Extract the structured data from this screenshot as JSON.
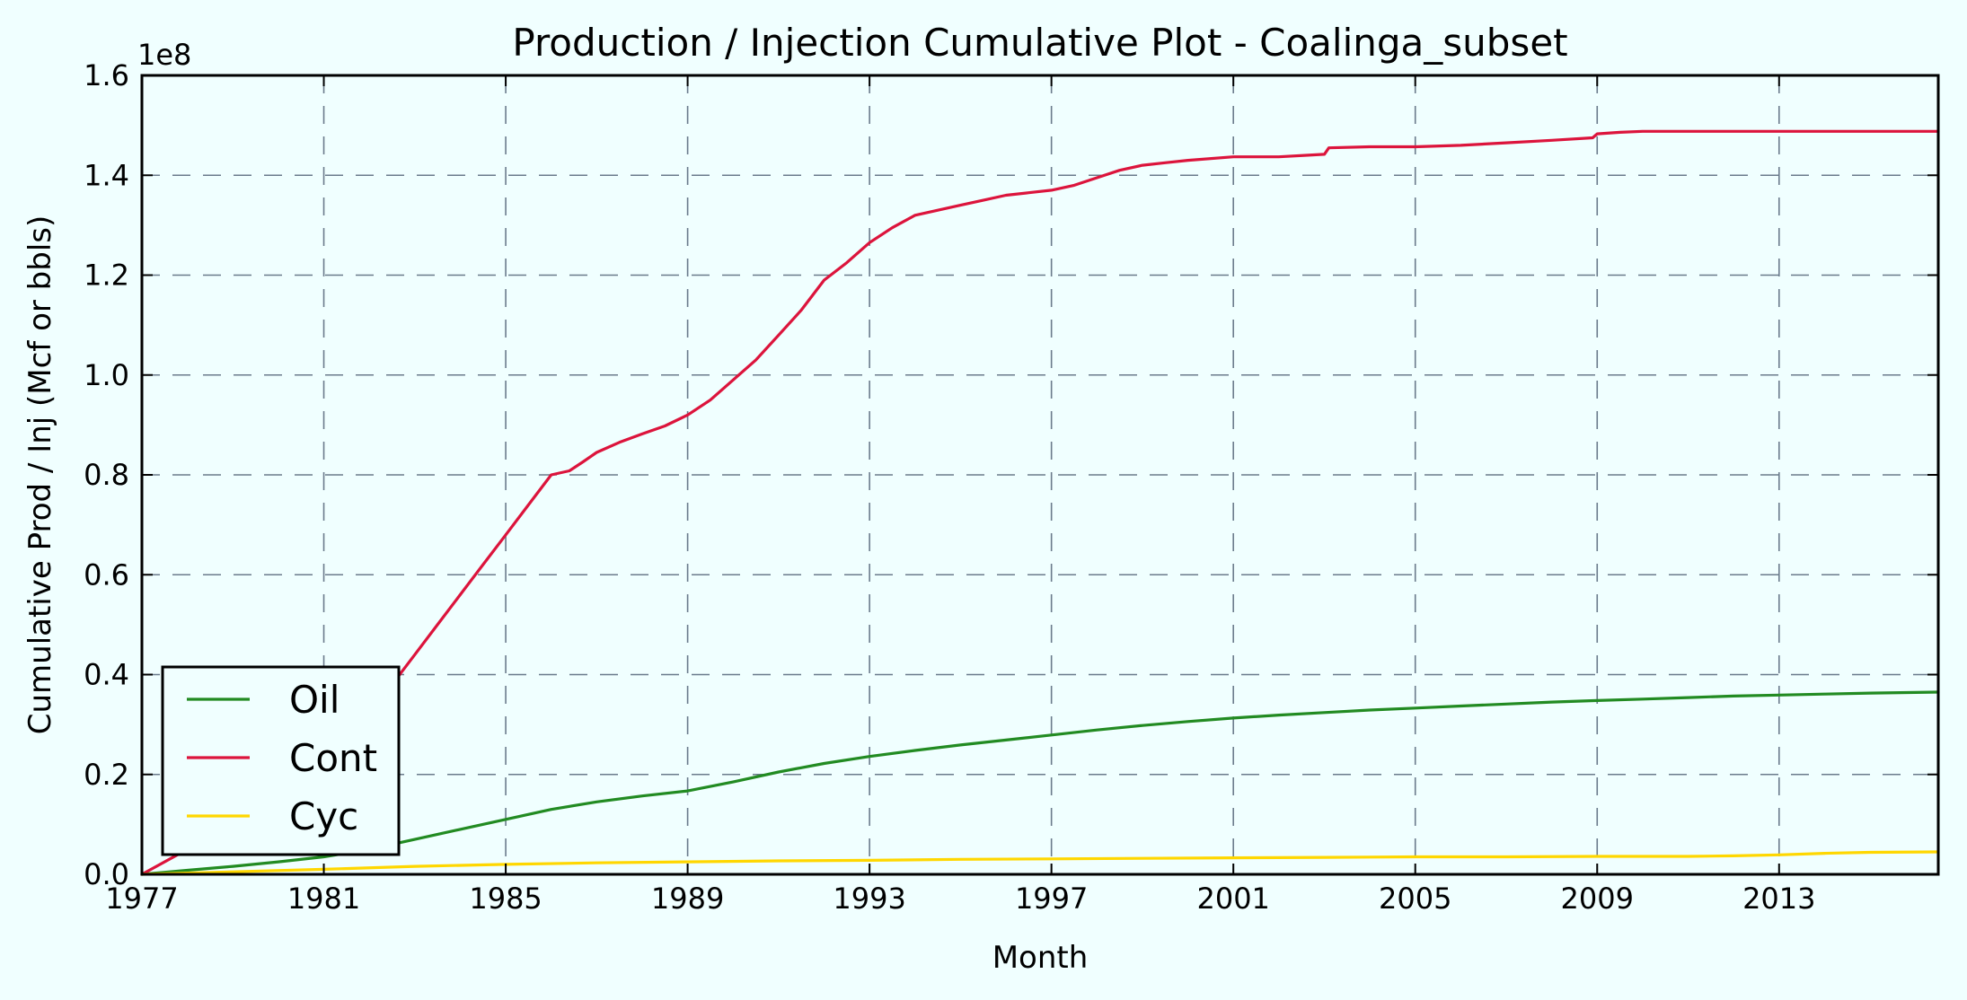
{
  "chart_data": {
    "type": "line",
    "title": "Production / Injection Cumulative Plot - Coalinga_subset",
    "xlabel": "Month",
    "ylabel": "Cumulative Prod / Inj (Mcf or bbls)",
    "y_offset_label": "1e8",
    "xlim": [
      1977,
      2016.5
    ],
    "ylim": [
      0,
      1.6
    ],
    "y_scale_factor": 100000000,
    "x_ticks": [
      1977,
      1981,
      1985,
      1989,
      1993,
      1997,
      2001,
      2005,
      2009,
      2013
    ],
    "x_tick_labels": [
      "1977",
      "1981",
      "1985",
      "1989",
      "1993",
      "1997",
      "2001",
      "2005",
      "2009",
      "2013"
    ],
    "y_ticks": [
      0,
      0.2,
      0.4,
      0.6,
      0.8,
      1.0,
      1.2,
      1.4,
      1.6
    ],
    "y_tick_labels": [
      "0.0",
      "0.2",
      "0.4",
      "0.6",
      "0.8",
      "1.0",
      "1.2",
      "1.4",
      "1.6"
    ],
    "grid": true,
    "legend_position": "lower-left",
    "series": [
      {
        "name": "Oil",
        "color": "#228b22",
        "x": [
          1977,
          1978,
          1979,
          1980,
          1981,
          1982,
          1983,
          1984,
          1985,
          1986,
          1987,
          1988,
          1989,
          1990,
          1991,
          1992,
          1993,
          1994,
          1995,
          1996,
          1997,
          1998,
          1999,
          2000,
          2001,
          2002,
          2003,
          2004,
          2005,
          2006,
          2007,
          2008,
          2009,
          2010,
          2011,
          2012,
          2013,
          2014,
          2015,
          2016.5
        ],
        "y": [
          0,
          0.008,
          0.016,
          0.025,
          0.035,
          0.05,
          0.07,
          0.09,
          0.11,
          0.13,
          0.145,
          0.157,
          0.167,
          0.185,
          0.205,
          0.222,
          0.236,
          0.248,
          0.259,
          0.269,
          0.279,
          0.289,
          0.298,
          0.306,
          0.313,
          0.319,
          0.324,
          0.329,
          0.333,
          0.337,
          0.341,
          0.345,
          0.348,
          0.351,
          0.354,
          0.357,
          0.359,
          0.361,
          0.363,
          0.365
        ]
      },
      {
        "name": "Cont",
        "color": "#dc143c",
        "x": [
          1977,
          1978,
          1979,
          1980,
          1981,
          1982,
          1982.5,
          1983,
          1983.5,
          1984,
          1984.5,
          1985,
          1985.5,
          1986,
          1986.4,
          1986.7,
          1987,
          1987.5,
          1988,
          1988.5,
          1989,
          1989.5,
          1990,
          1990.5,
          1991,
          1991.5,
          1992,
          1992.5,
          1993,
          1993.5,
          1994,
          1994.5,
          1995,
          1995.5,
          1996,
          1996.5,
          1997,
          1997.5,
          1998,
          1998.5,
          1999,
          1999.5,
          2000,
          2001,
          2002,
          2002.6,
          2003,
          2003.1,
          2004,
          2005,
          2006,
          2007,
          2008,
          2008.9,
          2009,
          2009.5,
          2010,
          2011,
          2012,
          2013,
          2014,
          2015,
          2016.5
        ],
        "y": [
          0,
          0.05,
          0.1,
          0.16,
          0.24,
          0.33,
          0.38,
          0.44,
          0.5,
          0.56,
          0.62,
          0.68,
          0.74,
          0.8,
          0.808,
          0.826,
          0.845,
          0.865,
          0.882,
          0.898,
          0.92,
          0.95,
          0.99,
          1.03,
          1.08,
          1.13,
          1.19,
          1.225,
          1.265,
          1.295,
          1.32,
          1.33,
          1.34,
          1.35,
          1.36,
          1.365,
          1.37,
          1.38,
          1.395,
          1.41,
          1.42,
          1.425,
          1.43,
          1.437,
          1.437,
          1.44,
          1.442,
          1.455,
          1.457,
          1.457,
          1.46,
          1.465,
          1.47,
          1.475,
          1.483,
          1.486,
          1.488,
          1.488,
          1.488,
          1.488,
          1.488,
          1.488,
          1.488
        ]
      },
      {
        "name": "Cyc",
        "color": "#ffd700",
        "x": [
          1977,
          1979,
          1981,
          1983,
          1985,
          1987,
          1989,
          1991,
          1993,
          1995,
          1997,
          1999,
          2001,
          2003,
          2005,
          2007,
          2009,
          2011,
          2012,
          2013,
          2014,
          2015,
          2016.5
        ],
        "y": [
          0,
          0.005,
          0.01,
          0.016,
          0.02,
          0.023,
          0.025,
          0.027,
          0.028,
          0.03,
          0.031,
          0.032,
          0.033,
          0.034,
          0.035,
          0.035,
          0.036,
          0.036,
          0.037,
          0.039,
          0.042,
          0.044,
          0.045
        ]
      }
    ]
  }
}
